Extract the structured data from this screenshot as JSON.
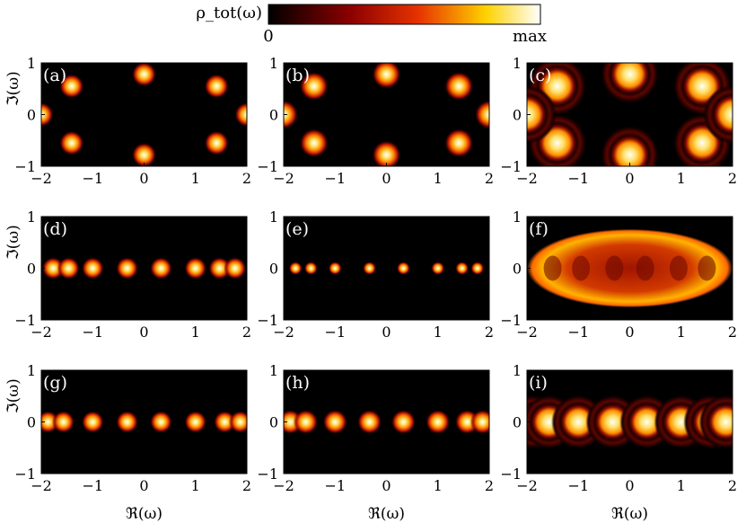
{
  "chart_data": {
    "type": "heatmap",
    "colorbar": {
      "label": "ρ_tot(ω)",
      "min_label": "0",
      "max_label": "max",
      "colormap": "black-red-yellow-white"
    },
    "x_axis": {
      "label": "ℜ(ω)",
      "range": [
        -2,
        2
      ],
      "ticks": [
        "−2",
        "−1",
        "0",
        "1",
        "2"
      ]
    },
    "y_axis": {
      "label": "ℑ(ω)",
      "range": [
        -1,
        1
      ],
      "ticks": [
        "−1",
        "0",
        "1"
      ]
    },
    "panels": [
      {
        "label": "(a)",
        "peaks": [
          [
            0,
            0.78
          ],
          [
            0,
            -0.78
          ],
          [
            -1.41,
            0.55
          ],
          [
            1.41,
            0.55
          ],
          [
            -1.41,
            -0.55
          ],
          [
            1.41,
            -0.55
          ],
          [
            -2,
            0
          ],
          [
            2,
            0
          ]
        ],
        "width": 0.055,
        "ring": 0
      },
      {
        "label": "(b)",
        "peaks": [
          [
            0,
            0.78
          ],
          [
            0,
            -0.78
          ],
          [
            -1.41,
            0.55
          ],
          [
            1.41,
            0.55
          ],
          [
            -1.41,
            -0.55
          ],
          [
            1.41,
            -0.55
          ],
          [
            -2,
            0
          ],
          [
            2,
            0
          ]
        ],
        "width": 0.065,
        "ring": 0
      },
      {
        "label": "(c)",
        "peaks": [
          [
            0,
            0.78
          ],
          [
            0,
            -0.78
          ],
          [
            -1.41,
            0.55
          ],
          [
            1.41,
            0.55
          ],
          [
            -1.41,
            -0.55
          ],
          [
            1.41,
            -0.55
          ],
          [
            -2,
            0
          ],
          [
            2,
            0
          ]
        ],
        "width": 0.13,
        "ring": 1
      },
      {
        "label": "(d)",
        "peaks": [
          [
            -1.77,
            0
          ],
          [
            -1.47,
            0
          ],
          [
            -1.0,
            0
          ],
          [
            -0.33,
            0
          ],
          [
            0.33,
            0
          ],
          [
            1.0,
            0
          ],
          [
            1.47,
            0
          ],
          [
            1.77,
            0
          ]
        ],
        "width": 0.05,
        "ring": 0
      },
      {
        "label": "(e)",
        "peaks": [
          [
            -1.77,
            0
          ],
          [
            -1.47,
            0
          ],
          [
            -1.0,
            0
          ],
          [
            -0.33,
            0
          ],
          [
            0.33,
            0
          ],
          [
            1.0,
            0
          ],
          [
            1.47,
            0
          ],
          [
            1.77,
            0
          ]
        ],
        "width": 0.03,
        "ring": 0
      },
      {
        "label": "(f)",
        "peaks": [],
        "width": 0.3,
        "ring": 0,
        "ellipse": true
      },
      {
        "label": "(g)",
        "peaks": [
          [
            -1.87,
            0
          ],
          [
            -1.57,
            0
          ],
          [
            -1.0,
            0
          ],
          [
            -0.33,
            0
          ],
          [
            0.33,
            0
          ],
          [
            1.0,
            0
          ],
          [
            1.57,
            0
          ],
          [
            1.87,
            0
          ]
        ],
        "width": 0.05,
        "ring": 0
      },
      {
        "label": "(h)",
        "peaks": [
          [
            -1.87,
            0
          ],
          [
            -1.57,
            0
          ],
          [
            -1.0,
            0
          ],
          [
            -0.33,
            0
          ],
          [
            0.33,
            0
          ],
          [
            1.0,
            0
          ],
          [
            1.57,
            0
          ],
          [
            1.87,
            0
          ]
        ],
        "width": 0.055,
        "ring": 0
      },
      {
        "label": "(i)",
        "peaks": [
          [
            -1.87,
            0
          ],
          [
            -1.57,
            0
          ],
          [
            -1.0,
            0
          ],
          [
            -0.33,
            0
          ],
          [
            0.33,
            0
          ],
          [
            1.0,
            0
          ],
          [
            1.57,
            0
          ],
          [
            1.87,
            0
          ]
        ],
        "width": 0.12,
        "ring": 1
      }
    ]
  }
}
